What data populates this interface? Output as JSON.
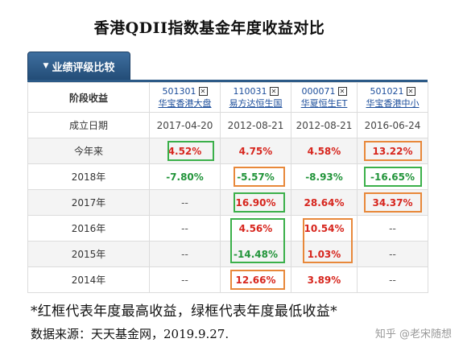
{
  "title": "香港QDII指数基金年度收益对比",
  "tab": {
    "label": "业绩评级比较"
  },
  "table": {
    "phase_header": "阶段收益",
    "funds": [
      {
        "code": "501301",
        "name": "华宝香港大盘"
      },
      {
        "code": "110031",
        "name": "易方达恒生国"
      },
      {
        "code": "000071",
        "name": "华夏恒生ET"
      },
      {
        "code": "501021",
        "name": "华宝香港中小"
      }
    ],
    "rows": [
      {
        "label": "成立日期",
        "cells": [
          "2017-04-20",
          "2012-08-21",
          "2012-08-21",
          "2016-06-24"
        ]
      },
      {
        "label": "今年来",
        "cells": [
          "4.52%",
          "4.75%",
          "4.58%",
          "13.22%"
        ]
      },
      {
        "label": "2018年",
        "cells": [
          "-7.80%",
          "-5.57%",
          "-8.93%",
          "-16.65%"
        ]
      },
      {
        "label": "2017年",
        "cells": [
          "--",
          "16.90%",
          "28.64%",
          "34.37%"
        ]
      },
      {
        "label": "2016年",
        "cells": [
          "--",
          "4.56%",
          "10.54%",
          "--"
        ]
      },
      {
        "label": "2015年",
        "cells": [
          "--",
          "-14.48%",
          "1.03%",
          "--"
        ]
      },
      {
        "label": "2014年",
        "cells": [
          "--",
          "12.66%",
          "3.89%",
          "--"
        ]
      }
    ]
  },
  "colors": {
    "highest_box": "#e8883a",
    "lowest_box": "#3bb04a",
    "positive": "#d7261e",
    "negative": "#22943a"
  },
  "note": "*红框代表年度最高收益，绿框代表年度最低收益*",
  "source": "数据来源：天天基金网，2019.9.27.",
  "watermark": "知乎 @老宋随想"
}
